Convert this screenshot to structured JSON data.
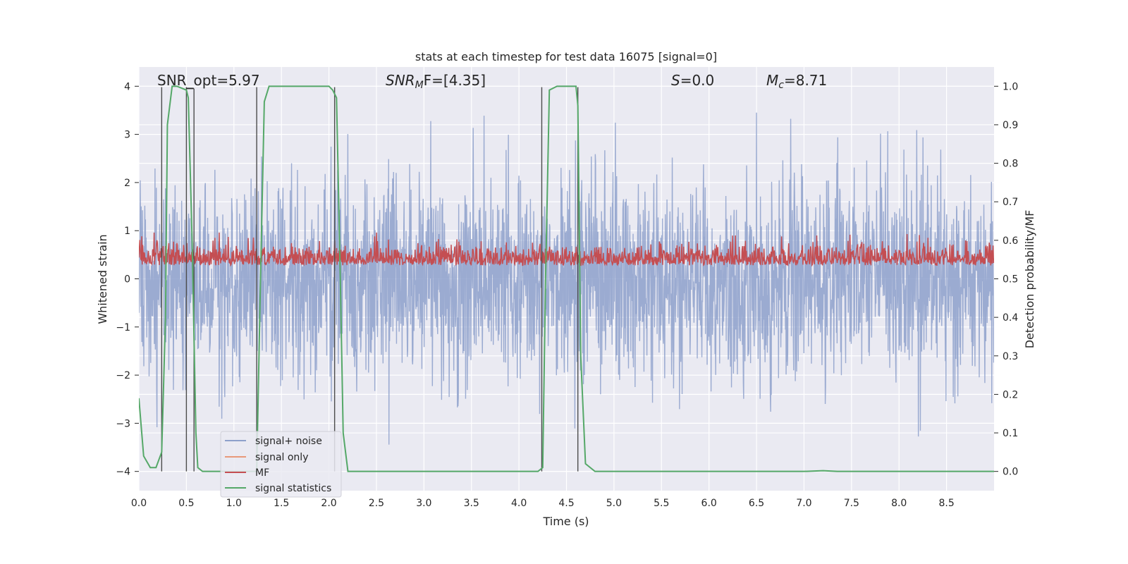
{
  "chart_data": {
    "type": "line",
    "title": "stats at each timestep for test data 16075 [signal=0]",
    "xlabel": "Time (s)",
    "ylabel": "Whitened strain",
    "ylabel_right": "Detection probability/MF",
    "xlim": [
      0.0,
      9.0
    ],
    "ylim": [
      -4.4,
      4.4
    ],
    "ylim_right": [
      -0.05,
      1.05
    ],
    "x_ticks": [
      "0.0",
      "0.5",
      "1.0",
      "1.5",
      "2.0",
      "2.5",
      "3.0",
      "3.5",
      "4.0",
      "4.5",
      "5.0",
      "5.5",
      "6.0",
      "6.5",
      "7.0",
      "7.5",
      "8.0",
      "8.5"
    ],
    "y_ticks": [
      "4",
      "3",
      "2",
      "1",
      "0",
      "−1",
      "−2",
      "−3",
      "−4"
    ],
    "y_ticks_right": [
      "1.0",
      "0.9",
      "0.8",
      "0.7",
      "0.6",
      "0.5",
      "0.4",
      "0.3",
      "0.2",
      "0.1",
      "0.0"
    ],
    "grid": true,
    "legend_position": "lower-left",
    "annotations": {
      "snr_opt": "SNR_opt=5.97",
      "snr_mf_base": "SNR",
      "snr_mf_sub": "M",
      "snr_mf_tail": "F=[4.35]",
      "s_base": "S",
      "s_tail": "=0.0",
      "mc_base": "M",
      "mc_sub": "c",
      "mc_tail": "=8.71"
    },
    "series": [
      {
        "name": "signal+ noise",
        "color": "#8da0cb",
        "description_of_values": "white noise",
        "amplitude_range": [
          -3.8,
          3.6
        ]
      },
      {
        "name": "signal only",
        "color": "#e8997a",
        "values": [
          0
        ]
      },
      {
        "name": "MF",
        "color": "#c44e52",
        "amplitude_range": [
          0.0,
          1.0
        ]
      },
      {
        "name": "signal statistics",
        "color": "#55a868",
        "axis": "right",
        "x": [
          0.0,
          0.05,
          0.12,
          0.18,
          0.24,
          0.28,
          0.3,
          0.35,
          0.4,
          0.5,
          0.52,
          0.56,
          0.6,
          0.62,
          0.67,
          0.7,
          1.0,
          1.24,
          1.28,
          1.32,
          1.37,
          1.4,
          1.6,
          2.0,
          2.04,
          2.08,
          2.12,
          2.15,
          2.2,
          2.5,
          3.0,
          3.5,
          4.0,
          4.2,
          4.25,
          4.28,
          4.32,
          4.4,
          4.6,
          4.62,
          4.65,
          4.7,
          4.8,
          5.0,
          6.0,
          7.0,
          7.2,
          7.35,
          8.0,
          9.0
        ],
        "y": [
          0.19,
          0.04,
          0.01,
          0.01,
          0.05,
          0.4,
          0.9,
          1.0,
          1.0,
          0.99,
          0.97,
          0.6,
          0.1,
          0.01,
          0.0,
          0.0,
          0.0,
          0.0,
          0.5,
          0.96,
          1.0,
          1.0,
          1.0,
          1.0,
          0.99,
          0.97,
          0.5,
          0.1,
          0.0,
          0.0,
          0.0,
          0.0,
          0.0,
          0.0,
          0.01,
          0.5,
          0.99,
          1.0,
          1.0,
          0.95,
          0.3,
          0.02,
          0.0,
          0.0,
          0.0,
          0.0,
          0.002,
          0.0,
          0.0,
          0.0
        ]
      }
    ],
    "vertical_markers_x": [
      0.24,
      0.5,
      1.24,
      2.06,
      4.24,
      4.62
    ],
    "marker_bracket": {
      "x1": 0.5,
      "x2": 0.58,
      "y": 3.95
    }
  }
}
